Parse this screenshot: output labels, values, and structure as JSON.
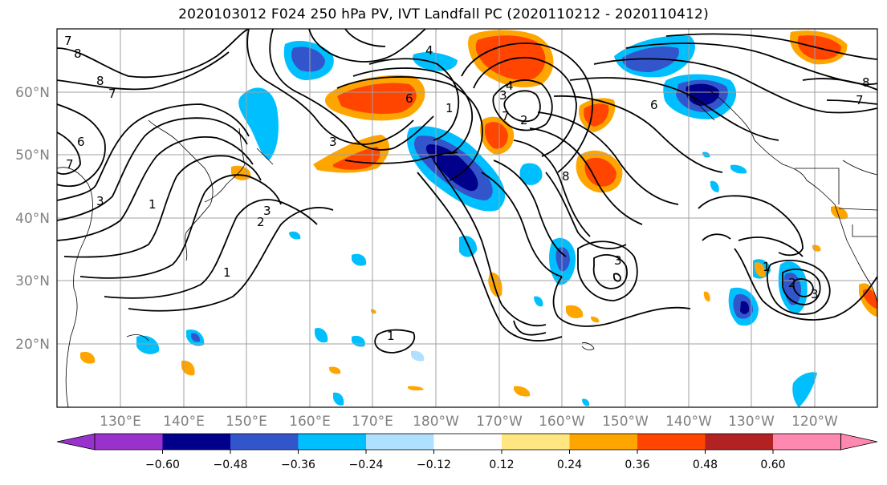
{
  "title": "2020103012 F024 250 hPa PV, IVT Landfall PC (2020110212 - 2020110412)",
  "map": {
    "lat_labels": [
      "60°N",
      "50°N",
      "40°N",
      "30°N",
      "20°N"
    ],
    "lon_labels": [
      "130°E",
      "140°E",
      "150°E",
      "160°E",
      "170°E",
      "180°W",
      "170°W",
      "160°W",
      "150°W",
      "140°W",
      "130°W",
      "120°W"
    ],
    "contour_labels": [
      "8",
      "7",
      "8",
      "7",
      "6",
      "7",
      "3",
      "1",
      "2",
      "3",
      "1",
      "4",
      "6",
      "3",
      "4",
      "3",
      "1",
      "2",
      "7",
      "6",
      "8",
      "3",
      "1",
      "2",
      "3",
      "1",
      "7",
      "8",
      "1"
    ]
  },
  "colorbar": {
    "ticks": [
      "−0.60",
      "−0.48",
      "−0.36",
      "−0.24",
      "−0.12",
      "0.12",
      "0.24",
      "0.36",
      "0.48",
      "0.60"
    ],
    "colors": [
      "#9932cc",
      "#00008b",
      "#3355cc",
      "#00bfff",
      "#b0e0ff",
      "#ffffff",
      "#ffe680",
      "#ffa500",
      "#ff4500",
      "#b22222",
      "#ff88b0"
    ]
  }
}
